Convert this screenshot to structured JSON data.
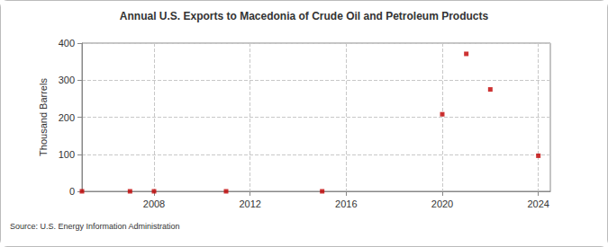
{
  "chart_data": {
    "type": "scatter",
    "title": "Annual U.S. Exports to Macedonia of Crude Oil and Petroleum Products",
    "y_label": "Thousand Barrels",
    "annotations": [
      "Source: U.S. Energy Information Administration"
    ],
    "x": [
      2005,
      2007,
      2008,
      2011,
      2015,
      2020,
      2021,
      2022,
      2024
    ],
    "values": [
      0,
      0,
      0,
      0,
      0,
      208,
      371,
      275,
      96
    ],
    "color": "#c00000",
    "marker": "square",
    "xlim": [
      2005,
      2024.5
    ],
    "xticks": [
      2008,
      2012,
      2016,
      2020,
      2024
    ],
    "ylim": [
      0,
      400
    ],
    "yticks": [
      0,
      100,
      200,
      300,
      400
    ],
    "grid": true
  }
}
